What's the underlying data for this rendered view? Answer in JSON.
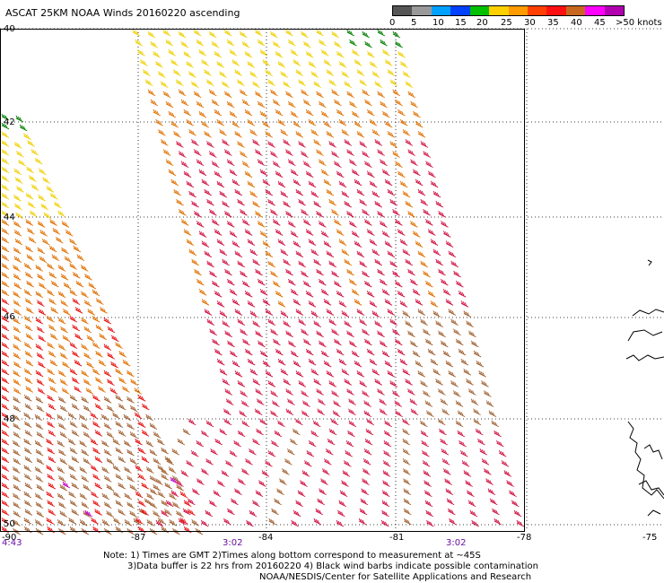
{
  "header": {
    "title": "ASCAT 25KM NOAA Winds 20160220 ascending"
  },
  "colorbar": {
    "colors": [
      "#555555",
      "#999999",
      "#00a0ff",
      "#0040ff",
      "#00c000",
      "#ffd000",
      "#ff9a00",
      "#ff4000",
      "#ff1010",
      "#c86820",
      "#ff00ff",
      "#b000b0"
    ],
    "labels": [
      "0",
      "5",
      "10",
      "15",
      "20",
      "25",
      "30",
      "35",
      "40",
      "45",
      ">50 knots"
    ]
  },
  "map": {
    "lat_labels": [
      "40",
      "42",
      "44",
      "46",
      "48",
      "50"
    ],
    "lon_labels": [
      "-90",
      "-87",
      "-84",
      "-81",
      "-78",
      "-75"
    ],
    "time_labels": [
      "4:43",
      "3:02",
      "3:02"
    ],
    "colors": {
      "yellow": "#f0d000",
      "orange": "#e07000",
      "red": "#e81010",
      "crimson": "#d01040",
      "brown": "#a06030",
      "green": "#008000",
      "purple": "#c000c0"
    }
  },
  "notes": {
    "line1": "Note: 1) Times are GMT 2)Times along bottom correspond to measurement at ~45S",
    "line2": "3)Data buffer is 22 hrs from 20160220 4) Black wind barbs indicate possible contamination",
    "line3": "NOAA/NESDIS/Center for Satellite Applications and Research"
  }
}
